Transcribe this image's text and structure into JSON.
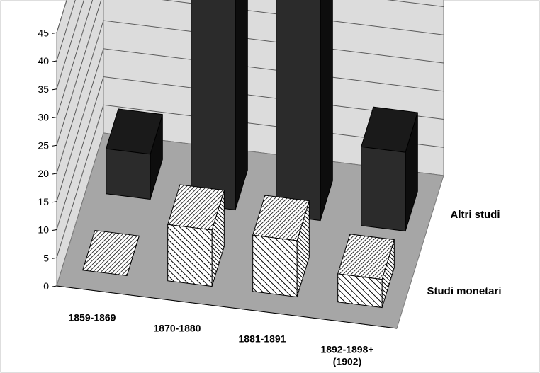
{
  "chart_data": {
    "type": "bar",
    "categories": [
      "1859-1869",
      "1870-1880",
      "1881-1891",
      "1892-1898+ (1902)"
    ],
    "category_label_lines": [
      [
        "1859-1869"
      ],
      [
        "1870-1880"
      ],
      [
        "1881-1891"
      ],
      [
        "1892-1898+",
        "(1902)"
      ]
    ],
    "series": [
      {
        "name": "Studi monetari",
        "values": [
          0,
          10,
          10,
          5
        ]
      },
      {
        "name": "Altri studi",
        "values": [
          8,
          38,
          46,
          14
        ]
      }
    ],
    "ylim": [
      0,
      45
    ],
    "yticks": [
      0,
      5,
      10,
      15,
      20,
      25,
      30,
      35,
      40,
      45
    ],
    "grid": true,
    "three_d": true,
    "colors": {
      "altri_front": "#2b2b2b",
      "altri_top": "#1a1a1a",
      "altri_side": "#0d0d0d",
      "monetari_fill": "hatched-white",
      "floor": "#a6a6a6",
      "walls": "#dcdcdc"
    }
  }
}
